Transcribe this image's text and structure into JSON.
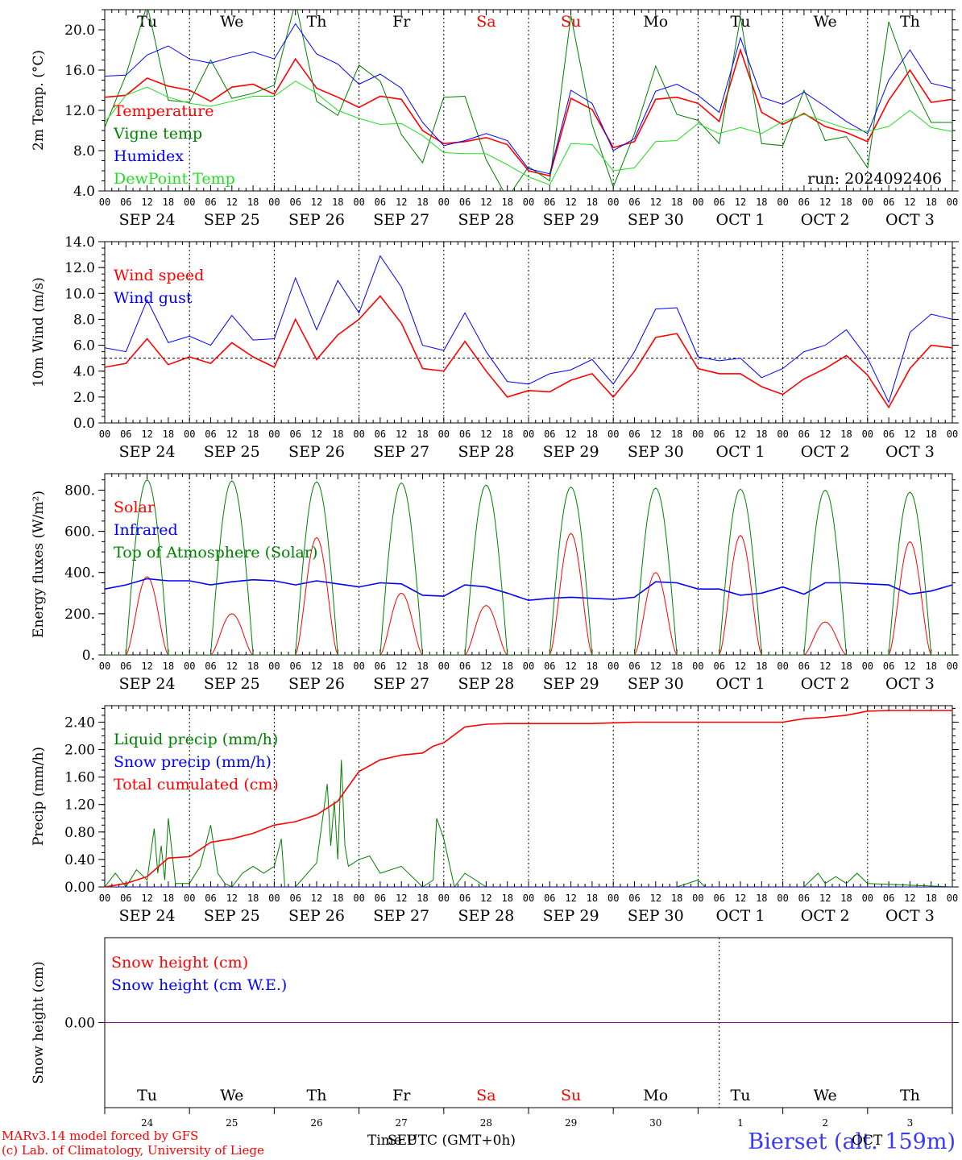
{
  "colors": {
    "red": "#ff0000",
    "green": "#008000",
    "blue": "#0000ff",
    "lightgreen": "#22dd22",
    "purple": "#7f007f",
    "axis": "#000000",
    "station": "#3a3af2"
  },
  "x_axis": {
    "hour_ticks": [
      "00",
      "06",
      "12",
      "18"
    ],
    "date_labels": [
      "SEP 24",
      "SEP 25",
      "SEP 26",
      "SEP 27",
      "SEP 28",
      "SEP 29",
      "SEP 30",
      "OCT  1",
      "OCT  2",
      "OCT  3"
    ],
    "weekday_labels": [
      {
        "text": "Tu",
        "color": "#000000"
      },
      {
        "text": "We",
        "color": "#000000"
      },
      {
        "text": "Th",
        "color": "#000000"
      },
      {
        "text": "Fr",
        "color": "#000000"
      },
      {
        "text": "Sa",
        "color": "#ff0000"
      },
      {
        "text": "Su",
        "color": "#ff0000"
      },
      {
        "text": "Mo",
        "color": "#000000"
      },
      {
        "text": "Tu",
        "color": "#000000"
      },
      {
        "text": "We",
        "color": "#000000"
      },
      {
        "text": "Th",
        "color": "#000000"
      }
    ],
    "day_numbers": [
      "24",
      "25",
      "26",
      "27",
      "28",
      "29",
      "30",
      "1",
      "2",
      "3"
    ],
    "time_label": "Time UTC (GMT+0h)",
    "sep_label": "SEP",
    "oct_label": "OCT"
  },
  "footer": {
    "model_line": "MARv3.14 model forced by GFS",
    "credit_line": "(c) Lab. of Climatology, University of Liege",
    "station": "Bierset (alt. 159m)"
  },
  "chart_data": [
    {
      "type": "line",
      "ylabel": "2m Temp. (°C)",
      "ylim": [
        4.0,
        22.0
      ],
      "yticks": [
        "4.0",
        "8.0",
        "12.0",
        "16.0",
        "20.0"
      ],
      "annotation": "run: 2024092406",
      "x_unit": "hours since SEP 24 00 UTC",
      "series": [
        {
          "name": "Temperature",
          "color": "#ff0000",
          "x": [
            0,
            6,
            12,
            18,
            24,
            30,
            36,
            42,
            48,
            54,
            60,
            66,
            72,
            78,
            84,
            90,
            96,
            102,
            108,
            114,
            120,
            126,
            132,
            138,
            144,
            150,
            156,
            162,
            168,
            174,
            180,
            186,
            192,
            198,
            204,
            210,
            216,
            222,
            228,
            234,
            240
          ],
          "values": [
            13.3,
            13.5,
            15.2,
            14.4,
            14.0,
            12.9,
            14.3,
            14.6,
            13.6,
            17.1,
            14.2,
            13.3,
            12.3,
            13.4,
            13.1,
            10.0,
            8.7,
            8.9,
            9.3,
            8.6,
            6.0,
            5.5,
            13.2,
            12.1,
            8.3,
            8.9,
            13.1,
            13.3,
            12.7,
            10.9,
            18.0,
            11.8,
            10.6,
            11.7,
            10.4,
            9.8,
            8.9,
            13.0,
            16.0,
            12.8,
            13.1
          ]
        },
        {
          "name": "Vigne temp",
          "color": "#008000",
          "x": [
            0,
            6,
            12,
            18,
            24,
            30,
            36,
            42,
            48,
            54,
            60,
            66,
            72,
            78,
            84,
            90,
            96,
            102,
            108,
            114,
            120,
            126,
            132,
            138,
            144,
            150,
            156,
            162,
            168,
            174,
            180,
            186,
            192,
            198,
            204,
            210,
            216,
            222,
            228,
            234,
            240
          ],
          "values": [
            10.3,
            15.5,
            22.5,
            13.0,
            12.8,
            17.0,
            13.2,
            13.7,
            14.5,
            22.8,
            12.9,
            11.5,
            16.5,
            14.9,
            9.6,
            6.8,
            13.3,
            13.4,
            7.1,
            3.3,
            6.4,
            5.0,
            21.4,
            10.6,
            4.4,
            9.7,
            16.4,
            11.6,
            11.0,
            8.7,
            21.3,
            8.7,
            8.5,
            14.0,
            9.0,
            9.4,
            6.3,
            20.8,
            15.0,
            10.8,
            10.8
          ]
        },
        {
          "name": "Humidex",
          "color": "#0000ff",
          "x": [
            0,
            6,
            12,
            18,
            24,
            30,
            36,
            42,
            48,
            54,
            60,
            66,
            72,
            78,
            84,
            90,
            96,
            102,
            108,
            114,
            120,
            126,
            132,
            138,
            144,
            150,
            156,
            162,
            168,
            174,
            180,
            186,
            192,
            198,
            204,
            210,
            216,
            222,
            228,
            234,
            240
          ],
          "values": [
            15.4,
            15.5,
            17.5,
            18.4,
            17.1,
            16.7,
            17.3,
            17.8,
            17.1,
            20.6,
            17.6,
            16.6,
            14.6,
            15.6,
            14.2,
            10.8,
            8.5,
            9.0,
            9.7,
            9.0,
            6.2,
            5.7,
            14.0,
            12.7,
            8.0,
            9.2,
            13.9,
            14.6,
            13.5,
            11.8,
            19.2,
            13.3,
            12.6,
            13.8,
            12.4,
            10.9,
            9.7,
            15.0,
            18.0,
            14.7,
            14.2
          ]
        },
        {
          "name": "DewPoint Temp",
          "color": "#22dd22",
          "x": [
            0,
            6,
            12,
            18,
            24,
            30,
            36,
            42,
            48,
            54,
            60,
            66,
            72,
            78,
            84,
            90,
            96,
            102,
            108,
            114,
            120,
            126,
            132,
            138,
            144,
            150,
            156,
            162,
            168,
            174,
            180,
            186,
            192,
            198,
            204,
            210,
            216,
            222,
            228,
            234,
            240
          ],
          "values": [
            10.8,
            13.5,
            14.3,
            13.3,
            12.7,
            12.4,
            12.9,
            13.4,
            13.4,
            14.9,
            13.7,
            12.0,
            11.2,
            10.6,
            10.7,
            9.5,
            7.8,
            7.7,
            7.7,
            6.6,
            5.4,
            4.6,
            8.7,
            8.6,
            6.0,
            6.3,
            8.9,
            9.0,
            10.7,
            9.7,
            10.3,
            9.7,
            10.9,
            11.6,
            10.9,
            10.2,
            9.9,
            10.4,
            12.0,
            10.3,
            9.9
          ]
        }
      ]
    },
    {
      "type": "line",
      "ylabel": "10m Wind (m/s)",
      "ylim": [
        0.0,
        14.0
      ],
      "yticks": [
        "0.0",
        "2.0",
        "4.0",
        "6.0",
        "8.0",
        "10.0",
        "12.0",
        "14.0"
      ],
      "reference_line": 5.0,
      "x_unit": "hours since SEP 24 00 UTC",
      "series": [
        {
          "name": "Wind speed",
          "color": "#ff0000",
          "x": [
            0,
            6,
            12,
            18,
            24,
            30,
            36,
            42,
            48,
            54,
            60,
            66,
            72,
            78,
            84,
            90,
            96,
            102,
            108,
            114,
            120,
            126,
            132,
            138,
            144,
            150,
            156,
            162,
            168,
            174,
            180,
            186,
            192,
            198,
            204,
            210,
            216,
            222,
            228,
            234,
            240
          ],
          "values": [
            4.3,
            4.6,
            6.5,
            4.5,
            5.1,
            4.6,
            6.2,
            5.1,
            4.3,
            8.0,
            4.9,
            6.8,
            8.0,
            9.8,
            7.7,
            4.2,
            4.0,
            6.3,
            4.0,
            2.0,
            2.5,
            2.4,
            3.3,
            3.8,
            2.0,
            4.0,
            6.6,
            6.9,
            4.2,
            3.8,
            3.8,
            2.8,
            2.2,
            3.4,
            4.2,
            5.2,
            3.7,
            1.2,
            4.2,
            6.0,
            5.8
          ]
        },
        {
          "name": "Wind gust",
          "color": "#0000ff",
          "x": [
            0,
            6,
            12,
            18,
            24,
            30,
            36,
            42,
            48,
            54,
            60,
            66,
            72,
            78,
            84,
            90,
            96,
            102,
            108,
            114,
            120,
            126,
            132,
            138,
            144,
            150,
            156,
            162,
            168,
            174,
            180,
            186,
            192,
            198,
            204,
            210,
            216,
            222,
            228,
            234,
            240
          ],
          "values": [
            5.8,
            5.5,
            9.5,
            6.2,
            6.7,
            6.0,
            8.3,
            6.4,
            6.5,
            11.2,
            7.2,
            11.0,
            8.5,
            12.9,
            10.5,
            6.0,
            5.6,
            8.5,
            5.5,
            3.2,
            3.0,
            3.8,
            4.1,
            4.9,
            3.0,
            5.5,
            8.8,
            8.9,
            5.1,
            4.8,
            5.0,
            3.5,
            4.2,
            5.5,
            6.0,
            7.2,
            5.0,
            1.6,
            7.0,
            8.4,
            8.0
          ]
        }
      ]
    },
    {
      "type": "line",
      "ylabel": "Energy fluxes (W/m²)",
      "ylim": [
        0,
        880
      ],
      "yticks": [
        "0.",
        "200.",
        "400.",
        "600.",
        "800."
      ],
      "x_unit": "hours since SEP 24 00 UTC",
      "series": [
        {
          "name": "Solar",
          "color": "#ff0000",
          "daily_peak": [
            380,
            200,
            570,
            300,
            240,
            590,
            400,
            580,
            160,
            550
          ]
        },
        {
          "name": "Infrared",
          "color": "#0000ff",
          "x": [
            0,
            6,
            12,
            18,
            24,
            30,
            36,
            42,
            48,
            54,
            60,
            66,
            72,
            78,
            84,
            90,
            96,
            102,
            108,
            114,
            120,
            126,
            132,
            138,
            144,
            150,
            156,
            162,
            168,
            174,
            180,
            186,
            192,
            198,
            204,
            210,
            216,
            222,
            228,
            234,
            240
          ],
          "values": [
            320,
            340,
            370,
            360,
            360,
            340,
            355,
            365,
            360,
            340,
            360,
            345,
            330,
            350,
            345,
            290,
            285,
            340,
            330,
            300,
            265,
            275,
            280,
            275,
            270,
            280,
            355,
            350,
            320,
            320,
            290,
            300,
            330,
            295,
            350,
            350,
            345,
            340,
            295,
            310,
            340
          ]
        },
        {
          "name": "Top of Atmosphere (Solar)",
          "color": "#008000",
          "daily_peak": [
            850,
            845,
            840,
            835,
            825,
            815,
            810,
            805,
            800,
            790
          ]
        }
      ]
    },
    {
      "type": "line",
      "ylabel": "Precip (mm/h)",
      "ylim": [
        0.0,
        2.64
      ],
      "yticks": [
        "0.00",
        "0.40",
        "0.80",
        "1.20",
        "1.60",
        "2.00",
        "2.40"
      ],
      "x_unit": "hours since SEP 24 00 UTC",
      "series": [
        {
          "name": "Liquid precip (mm/h)",
          "color": "#008000",
          "x": [
            0,
            3,
            6,
            9,
            12,
            14,
            15,
            16,
            17,
            18,
            20,
            24,
            27,
            30,
            32,
            34,
            36,
            39,
            42,
            45,
            48,
            50,
            51,
            54,
            60,
            63,
            64,
            65,
            66,
            67,
            68,
            69,
            72,
            75,
            78,
            84,
            90,
            93,
            94,
            96,
            99,
            102,
            108,
            114,
            120,
            126,
            132,
            138,
            144,
            150,
            156,
            162,
            168,
            170,
            174,
            180,
            186,
            192,
            198,
            202,
            204,
            207,
            210,
            213,
            216,
            240
          ],
          "values": [
            0.0,
            0.2,
            0.0,
            0.25,
            0.1,
            0.85,
            0.2,
            0.6,
            0.1,
            1.0,
            0.05,
            0.05,
            0.3,
            0.9,
            0.2,
            0.05,
            0.0,
            0.2,
            0.3,
            0.2,
            0.3,
            0.7,
            0.0,
            0.0,
            0.35,
            1.5,
            0.6,
            1.25,
            0.4,
            1.85,
            0.6,
            0.3,
            0.4,
            0.45,
            0.2,
            0.3,
            0.0,
            0.1,
            1.0,
            0.7,
            0.0,
            0.2,
            0.0,
            0.0,
            0.0,
            0.0,
            0.0,
            0.0,
            0.0,
            0.0,
            0.0,
            0.0,
            0.1,
            0.0,
            0.0,
            0.0,
            0.0,
            0.0,
            0.0,
            0.2,
            0.05,
            0.15,
            0.05,
            0.2,
            0.05,
            0.0
          ]
        },
        {
          "name": "Snow precip (mm/h)",
          "color": "#0000ff",
          "x": [
            0,
            240
          ],
          "values": [
            0.0,
            0.0
          ]
        },
        {
          "name": "Total cumulated (cm)",
          "color": "#ff0000",
          "x": [
            0,
            6,
            12,
            18,
            24,
            30,
            36,
            42,
            48,
            54,
            60,
            66,
            72,
            78,
            84,
            90,
            93,
            96,
            102,
            108,
            114,
            120,
            126,
            132,
            138,
            144,
            150,
            156,
            162,
            168,
            174,
            180,
            186,
            192,
            198,
            204,
            210,
            216,
            222,
            228,
            234,
            240
          ],
          "values": [
            0.0,
            0.05,
            0.15,
            0.42,
            0.44,
            0.65,
            0.7,
            0.78,
            0.9,
            0.95,
            1.05,
            1.25,
            1.68,
            1.85,
            1.92,
            1.95,
            2.05,
            2.1,
            2.33,
            2.37,
            2.38,
            2.38,
            2.38,
            2.38,
            2.38,
            2.39,
            2.4,
            2.4,
            2.4,
            2.4,
            2.4,
            2.4,
            2.4,
            2.4,
            2.45,
            2.47,
            2.5,
            2.56,
            2.57,
            2.57,
            2.57,
            2.57
          ]
        }
      ]
    },
    {
      "type": "line",
      "ylabel": "Snow height (cm)",
      "ylim": [
        -1.0,
        1.0
      ],
      "yticks": [
        "0.00"
      ],
      "x_unit": "hours since SEP 24 00 UTC",
      "series": [
        {
          "name": "Snow height (cm)",
          "color": "#ff0000",
          "x": [
            0,
            240
          ],
          "values": [
            0.0,
            0.0
          ]
        },
        {
          "name": "Snow height (cm W.E.)",
          "color": "#0000ff",
          "x": [
            0,
            240
          ],
          "values": [
            0.0,
            0.0
          ]
        }
      ]
    }
  ]
}
